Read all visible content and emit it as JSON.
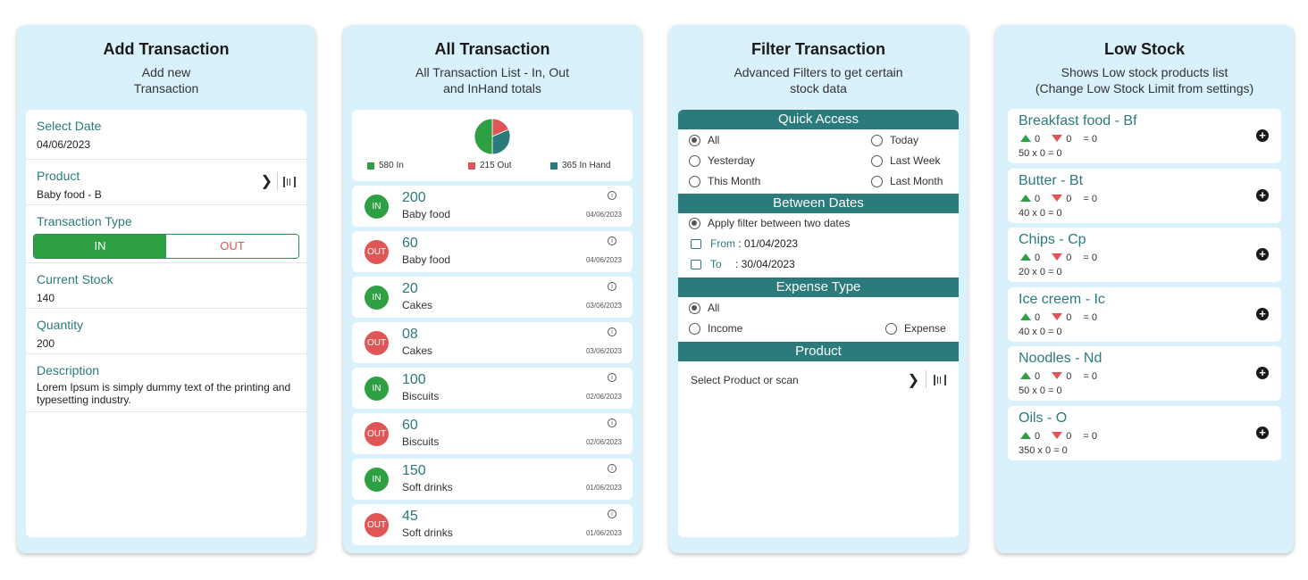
{
  "add": {
    "title": "Add Transaction",
    "sub1": "Add new",
    "sub2": "Transaction",
    "date_label": "Select Date",
    "date_value": "04/06/2023",
    "product_label": "Product",
    "product_value": "Baby food - B",
    "type_label": "Transaction Type",
    "type_in": "IN",
    "type_out": "OUT",
    "stock_label": "Current Stock",
    "stock_value": "140",
    "qty_label": "Quantity",
    "qty_value": "200",
    "desc_label": "Description",
    "desc_value": "Lorem Ipsum is simply dummy text of the printing and typesetting industry."
  },
  "all": {
    "title": "All Transaction",
    "sub1": "All Transaction List - In, Out",
    "sub2": "and InHand totals",
    "legend_in": "580 In",
    "legend_out": "215 Out",
    "legend_hand": "365 In Hand",
    "colors": {
      "in": "#2ea043",
      "out": "#e05555",
      "hand": "#2b7a7c"
    },
    "pie": {
      "in": 580,
      "out": 215,
      "hand": 365
    },
    "items": [
      {
        "type": "IN",
        "qty": "200",
        "name": "Baby food",
        "date": "04/06/2023"
      },
      {
        "type": "OUT",
        "qty": "60",
        "name": "Baby food",
        "date": "04/06/2023"
      },
      {
        "type": "IN",
        "qty": "20",
        "name": "Cakes",
        "date": "03/06/2023"
      },
      {
        "type": "OUT",
        "qty": "08",
        "name": "Cakes",
        "date": "03/06/2023"
      },
      {
        "type": "IN",
        "qty": "100",
        "name": "Biscuits",
        "date": "02/06/2023"
      },
      {
        "type": "OUT",
        "qty": "60",
        "name": "Biscuits",
        "date": "02/06/2023"
      },
      {
        "type": "IN",
        "qty": "150",
        "name": "Soft drinks",
        "date": "01/06/2023"
      },
      {
        "type": "OUT",
        "qty": "45",
        "name": "Soft drinks",
        "date": "01/06/2023"
      }
    ]
  },
  "filter": {
    "title": "Filter Transaction",
    "sub1": "Advanced Filters to get certain",
    "sub2": "stock data",
    "quick_head": "Quick Access",
    "q_all": "All",
    "q_today": "Today",
    "q_yesterday": "Yesterday",
    "q_lastweek": "Last Week",
    "q_thismonth": "This Month",
    "q_lastmonth": "Last Month",
    "between_head": "Between Dates",
    "apply_filter": "Apply filter between two dates",
    "from_label": "From",
    "from_value": ": 01/04/2023",
    "to_label": "To",
    "to_value": ": 30/04/2023",
    "expense_head": "Expense Type",
    "e_all": "All",
    "e_income": "Income",
    "e_expense": "Expense",
    "product_head": "Product",
    "product_placeholder": "Select Product or scan"
  },
  "low": {
    "title": "Low Stock",
    "sub1": "Shows Low stock products list",
    "sub2": "(Change Low Stock Limit from settings)",
    "items": [
      {
        "name": "Breakfast food - Bf",
        "up": "0",
        "down": "0",
        "eq": "= 0",
        "calc": "50 x 0 = 0"
      },
      {
        "name": "Butter - Bt",
        "up": "0",
        "down": "0",
        "eq": "= 0",
        "calc": "40 x 0 = 0"
      },
      {
        "name": "Chips - Cp",
        "up": "0",
        "down": "0",
        "eq": "= 0",
        "calc": "20 x 0 = 0"
      },
      {
        "name": "Ice creem - Ic",
        "up": "0",
        "down": "0",
        "eq": "= 0",
        "calc": "40 x 0 = 0"
      },
      {
        "name": "Noodles - Nd",
        "up": "0",
        "down": "0",
        "eq": "= 0",
        "calc": "50 x 0 = 0"
      },
      {
        "name": "Oils - O",
        "up": "0",
        "down": "0",
        "eq": "= 0",
        "calc": "350 x 0 = 0"
      }
    ]
  }
}
